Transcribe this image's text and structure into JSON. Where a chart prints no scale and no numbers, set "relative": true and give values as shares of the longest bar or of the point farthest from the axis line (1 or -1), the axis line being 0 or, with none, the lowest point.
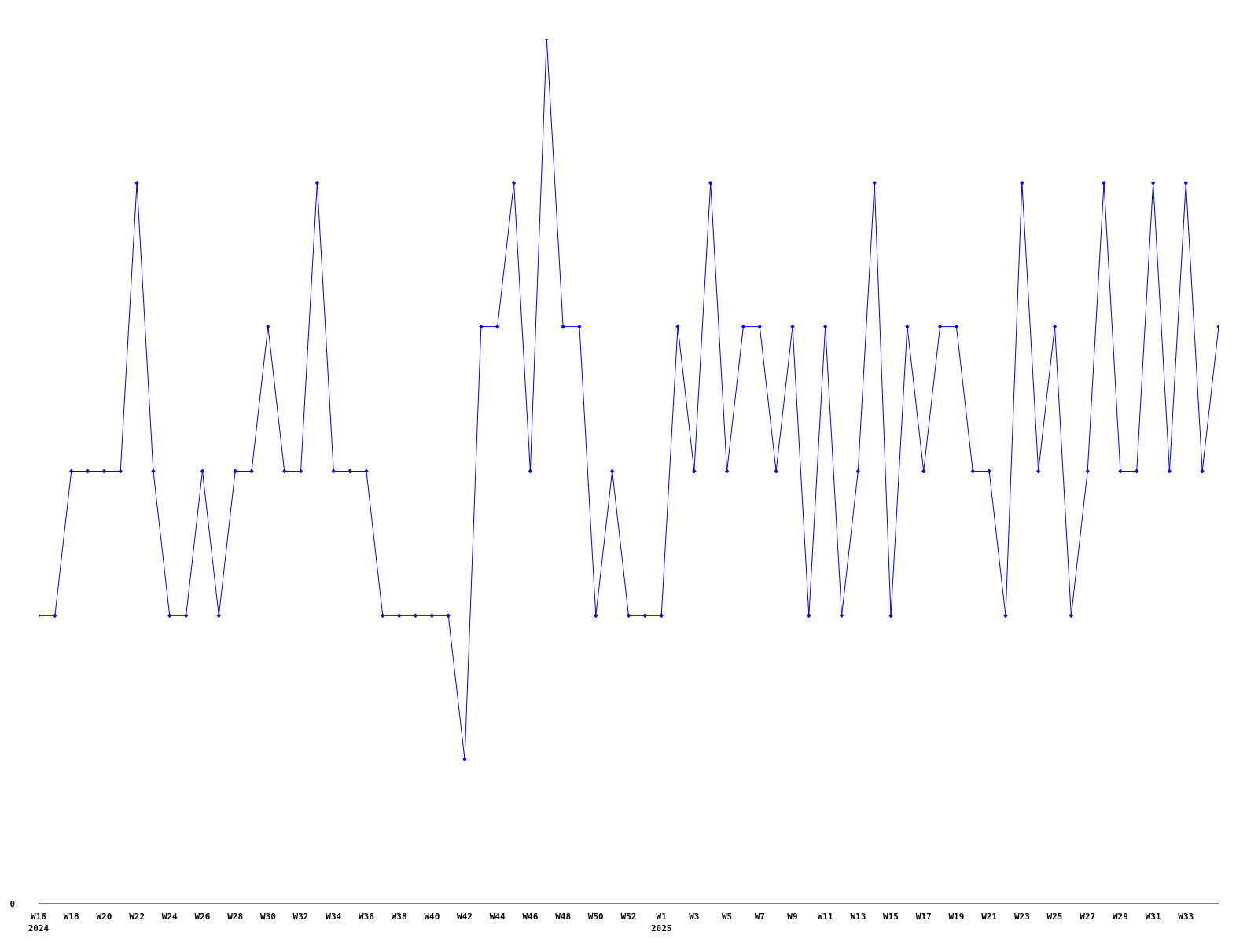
{
  "chart_data": {
    "type": "line",
    "relative": true,
    "categories": [
      "W16\n2024",
      null,
      "W18",
      null,
      "W20",
      null,
      "W22",
      null,
      "W24",
      null,
      "W26",
      null,
      "W28",
      null,
      "W30",
      null,
      "W32",
      null,
      "W34",
      null,
      "W36",
      null,
      "W38",
      null,
      "W40",
      null,
      "W42",
      null,
      "W44",
      null,
      "W46",
      null,
      "W48",
      null,
      "W50",
      null,
      "W52",
      null,
      "W1\n2025",
      null,
      "W3",
      null,
      "W5",
      null,
      "W7",
      null,
      "W9",
      null,
      "W11",
      null,
      "W13",
      null,
      "W15",
      null,
      "W17",
      null,
      "W19",
      null,
      "W21",
      null,
      "W23",
      null,
      "W25",
      null,
      "W27",
      null,
      "W29",
      null,
      "W31",
      null,
      "W33",
      null,
      null
    ],
    "series": [
      {
        "color": "#0000ff",
        "values": [
          0.333,
          0.333,
          0.5,
          0.5,
          0.5,
          0.5,
          0.833,
          0.5,
          0.333,
          0.333,
          0.5,
          0.333,
          0.5,
          0.5,
          0.667,
          0.5,
          0.5,
          0.833,
          0.5,
          0.5,
          0.5,
          0.333,
          0.333,
          0.333,
          0.333,
          0.333,
          0.167,
          0.667,
          0.667,
          0.833,
          0.5,
          1,
          0.667,
          0.667,
          0.333,
          0.5,
          0.333,
          0.333,
          0.333,
          0.667,
          0.5,
          0.833,
          0.5,
          0.667,
          0.667,
          0.5,
          0.667,
          0.333,
          0.667,
          0.333,
          0.5,
          0.833,
          0.333,
          0.667,
          0.5,
          0.667,
          0.667,
          0.5,
          0.5,
          0.333,
          0.833,
          0.5,
          0.667,
          0.333,
          0.5,
          0.833,
          0.5,
          0.5,
          0.833,
          0.5,
          0.833,
          0.5,
          0.667
        ]
      }
    ],
    "annotations": [
      "0"
    ],
    "marker": "diamond",
    "line_style": "solid",
    "grid": false,
    "legend": false
  }
}
